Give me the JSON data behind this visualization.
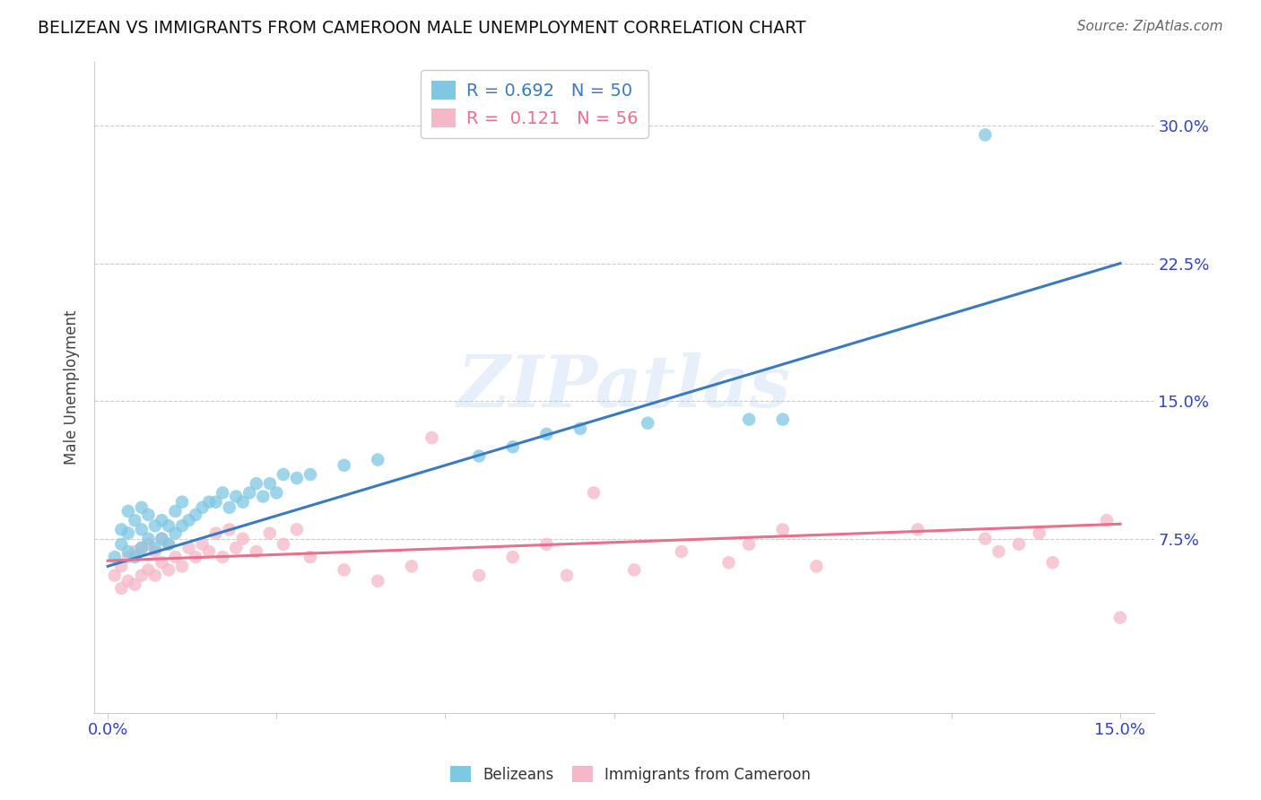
{
  "title": "BELIZEAN VS IMMIGRANTS FROM CAMEROON MALE UNEMPLOYMENT CORRELATION CHART",
  "source": "Source: ZipAtlas.com",
  "ylabel": "Male Unemployment",
  "xlim": [
    -0.002,
    0.155
  ],
  "ylim": [
    -0.02,
    0.335
  ],
  "ytick_positions": [
    0.075,
    0.15,
    0.225,
    0.3
  ],
  "ytick_labels": [
    "7.5%",
    "15.0%",
    "22.5%",
    "30.0%"
  ],
  "xtick_positions": [
    0.0,
    0.025,
    0.05,
    0.075,
    0.1,
    0.125,
    0.15
  ],
  "xtick_labels": [
    "0.0%",
    "",
    "",
    "",
    "",
    "",
    "15.0%"
  ],
  "blue_color": "#7ec8e3",
  "pink_color": "#f5b8c8",
  "blue_line_color": "#3a7abf",
  "pink_line_color": "#e8708a",
  "r_blue": 0.692,
  "n_blue": 50,
  "r_pink": 0.121,
  "n_pink": 56,
  "legend_label_blue": "Belizeans",
  "legend_label_pink": "Immigrants from Cameroon",
  "watermark": "ZIPatlas",
  "blue_scatter_x": [
    0.001,
    0.002,
    0.002,
    0.003,
    0.003,
    0.003,
    0.004,
    0.004,
    0.005,
    0.005,
    0.005,
    0.006,
    0.006,
    0.007,
    0.007,
    0.008,
    0.008,
    0.009,
    0.009,
    0.01,
    0.01,
    0.011,
    0.011,
    0.012,
    0.013,
    0.014,
    0.015,
    0.016,
    0.017,
    0.018,
    0.019,
    0.02,
    0.021,
    0.022,
    0.023,
    0.024,
    0.025,
    0.026,
    0.028,
    0.03,
    0.035,
    0.04,
    0.055,
    0.06,
    0.065,
    0.07,
    0.08,
    0.095,
    0.1,
    0.13
  ],
  "blue_scatter_y": [
    0.065,
    0.072,
    0.08,
    0.068,
    0.078,
    0.09,
    0.065,
    0.085,
    0.07,
    0.08,
    0.092,
    0.075,
    0.088,
    0.07,
    0.082,
    0.075,
    0.085,
    0.072,
    0.082,
    0.078,
    0.09,
    0.082,
    0.095,
    0.085,
    0.088,
    0.092,
    0.095,
    0.095,
    0.1,
    0.092,
    0.098,
    0.095,
    0.1,
    0.105,
    0.098,
    0.105,
    0.1,
    0.11,
    0.108,
    0.11,
    0.115,
    0.118,
    0.12,
    0.125,
    0.132,
    0.135,
    0.138,
    0.14,
    0.14,
    0.295
  ],
  "pink_scatter_x": [
    0.001,
    0.002,
    0.002,
    0.003,
    0.003,
    0.004,
    0.004,
    0.005,
    0.005,
    0.006,
    0.006,
    0.007,
    0.007,
    0.008,
    0.008,
    0.009,
    0.009,
    0.01,
    0.011,
    0.012,
    0.013,
    0.014,
    0.015,
    0.016,
    0.017,
    0.018,
    0.019,
    0.02,
    0.022,
    0.024,
    0.026,
    0.028,
    0.03,
    0.035,
    0.04,
    0.045,
    0.048,
    0.055,
    0.06,
    0.065,
    0.068,
    0.072,
    0.078,
    0.085,
    0.092,
    0.095,
    0.1,
    0.105,
    0.12,
    0.13,
    0.132,
    0.135,
    0.138,
    0.14,
    0.148,
    0.15
  ],
  "pink_scatter_y": [
    0.055,
    0.048,
    0.06,
    0.052,
    0.065,
    0.05,
    0.068,
    0.055,
    0.07,
    0.058,
    0.072,
    0.055,
    0.068,
    0.062,
    0.075,
    0.058,
    0.072,
    0.065,
    0.06,
    0.07,
    0.065,
    0.072,
    0.068,
    0.078,
    0.065,
    0.08,
    0.07,
    0.075,
    0.068,
    0.078,
    0.072,
    0.08,
    0.065,
    0.058,
    0.052,
    0.06,
    0.13,
    0.055,
    0.065,
    0.072,
    0.055,
    0.1,
    0.058,
    0.068,
    0.062,
    0.072,
    0.08,
    0.06,
    0.08,
    0.075,
    0.068,
    0.072,
    0.078,
    0.062,
    0.085,
    0.032
  ],
  "blue_trendline_x": [
    0.0,
    0.15
  ],
  "blue_trendline_y": [
    0.06,
    0.225
  ],
  "pink_trendline_x": [
    0.0,
    0.15
  ],
  "pink_trendline_y": [
    0.063,
    0.083
  ]
}
